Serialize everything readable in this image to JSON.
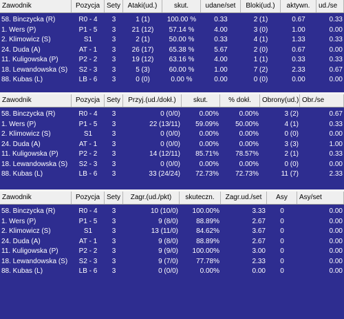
{
  "tables": [
    {
      "headers": [
        "Zawodnik",
        "Pozycja",
        "Sety",
        "Ataki(ud.)",
        "skut.",
        "udane/set",
        "Bloki(ud.)",
        "aktywn.",
        "ud./se"
      ],
      "rows": [
        [
          "58. Binczycka (R)",
          "R0 - 4",
          "3",
          "1 (1)",
          "100.00 %",
          "0.33",
          "2 (1)",
          "0.67",
          "0.33"
        ],
        [
          "1. Wers (P)",
          "P1 - 5",
          "3",
          "21 (12)",
          "57.14 %",
          "4.00",
          "3 (0)",
          "1.00",
          "0.00"
        ],
        [
          "2. Klimowicz (S)",
          "S1",
          "3",
          "2 (1)",
          "50.00 %",
          "0.33",
          "4 (1)",
          "1.33",
          "0.33"
        ],
        [
          "24. Duda (A)",
          "AT - 1",
          "3",
          "26 (17)",
          "65.38 %",
          "5.67",
          "2 (0)",
          "0.67",
          "0.00"
        ],
        [
          "11. Kuligowska (P)",
          "P2 - 2",
          "3",
          "19 (12)",
          "63.16 %",
          "4.00",
          "1 (1)",
          "0.33",
          "0.33"
        ],
        [
          "18. Lewandowska (S)",
          "S2 - 3",
          "3",
          "5 (3)",
          "60.00 %",
          "1.00",
          "7 (2)",
          "2.33",
          "0.67"
        ],
        [
          "88. Kubas (L)",
          "LB - 6",
          "3",
          "0 (0)",
          "0.00 %",
          "0.00",
          "0 (0)",
          "0.00",
          "0.00"
        ]
      ]
    },
    {
      "headers": [
        "Zawodnik",
        "Pozycja",
        "Sety",
        "Przyj.(ud./dokł.)",
        "skut.",
        "% dokł.",
        "Obrony(ud.)",
        "Obr./se"
      ],
      "rows": [
        [
          "58. Binczycka (R)",
          "R0 - 4",
          "3",
          "0 (0/0)",
          "0.00%",
          "0.00%",
          "3 (2)",
          "0.67"
        ],
        [
          "1. Wers (P)",
          "P1 - 5",
          "3",
          "22 (13/11)",
          "59.09%",
          "50.00%",
          "4 (1)",
          "0.33"
        ],
        [
          "2. Klimowicz (S)",
          "S1",
          "3",
          "0 (0/0)",
          "0.00%",
          "0.00%",
          "0 (0)",
          "0.00"
        ],
        [
          "24. Duda (A)",
          "AT - 1",
          "3",
          "0 (0/0)",
          "0.00%",
          "0.00%",
          "3 (3)",
          "1.00"
        ],
        [
          "11. Kuligowska (P)",
          "P2 - 2",
          "3",
          "14 (12/11)",
          "85.71%",
          "78.57%",
          "2 (1)",
          "0.33"
        ],
        [
          "18. Lewandowska (S)",
          "S2 - 3",
          "3",
          "0 (0/0)",
          "0.00%",
          "0.00%",
          "0 (0)",
          "0.00"
        ],
        [
          "88. Kubas (L)",
          "LB - 6",
          "3",
          "33 (24/24)",
          "72.73%",
          "72.73%",
          "11 (7)",
          "2.33"
        ]
      ]
    },
    {
      "headers": [
        "Zawodnik",
        "Pozycja",
        "Sety",
        "Zagr.(ud./pkt)",
        "skuteczn.",
        "Zagr.ud./set",
        "Asy",
        "Asy/set"
      ],
      "rows": [
        [
          "58. Binczycka (R)",
          "R0 - 4",
          "3",
          "10 (10/0)",
          "100.00%",
          "3.33",
          "0",
          "0.00"
        ],
        [
          "1. Wers (P)",
          "P1 - 5",
          "3",
          "9 (8/0)",
          "88.89%",
          "2.67",
          "0",
          "0.00"
        ],
        [
          "2. Klimowicz (S)",
          "S1",
          "3",
          "13 (11/0)",
          "84.62%",
          "3.67",
          "0",
          "0.00"
        ],
        [
          "24. Duda (A)",
          "AT - 1",
          "3",
          "9 (8/0)",
          "88.89%",
          "2.67",
          "0",
          "0.00"
        ],
        [
          "11. Kuligowska (P)",
          "P2 - 2",
          "3",
          "9 (9/0)",
          "100.00%",
          "3.00",
          "0",
          "0.00"
        ],
        [
          "18. Lewandowska (S)",
          "S2 - 3",
          "3",
          "9 (7/0)",
          "77.78%",
          "2.33",
          "0",
          "0.00"
        ],
        [
          "88. Kubas (L)",
          "LB - 6",
          "3",
          "0 (0/0)",
          "0.00%",
          "0.00",
          "0",
          "0.00"
        ]
      ]
    }
  ]
}
